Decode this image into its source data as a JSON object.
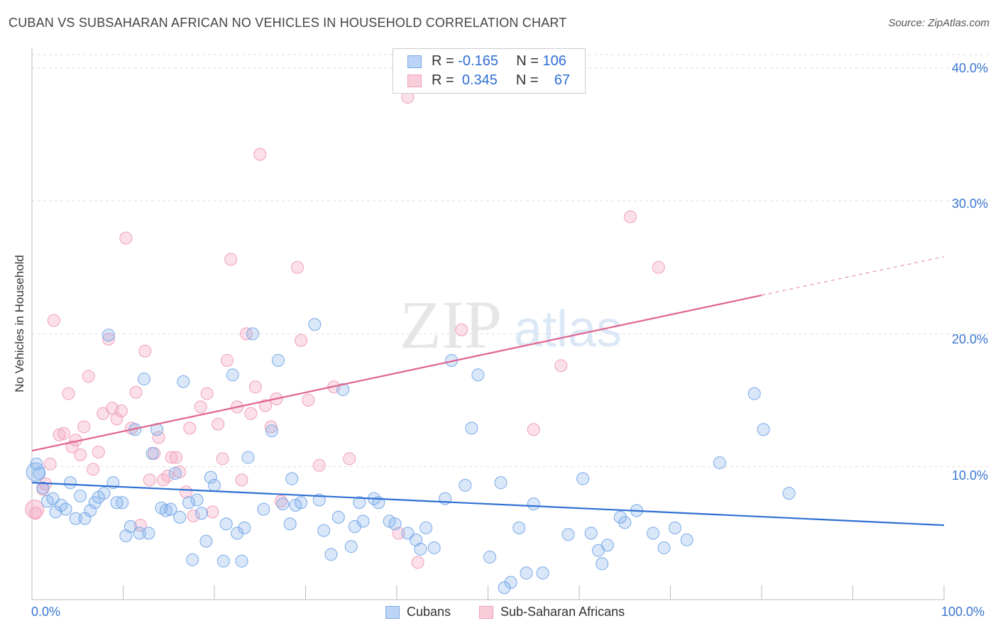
{
  "header": {
    "title": "CUBAN VS SUBSAHARAN AFRICAN NO VEHICLES IN HOUSEHOLD CORRELATION CHART",
    "source": "Source: ZipAtlas.com"
  },
  "legend": {
    "rows": [
      {
        "r_label": "R =",
        "r_value": "-0.165",
        "n_label": "N =",
        "n_value": "106"
      },
      {
        "r_label": "R =",
        "r_value": "0.345",
        "n_label": "N =",
        "n_value": "67"
      }
    ]
  },
  "bottom_legend": [
    "Cubans",
    "Sub-Saharan Africans"
  ],
  "watermark": {
    "zip": "ZIP",
    "atlas": "atlas"
  },
  "chart_data": {
    "type": "scatter",
    "title": "CUBAN VS SUBSAHARAN AFRICAN NO VEHICLES IN HOUSEHOLD CORRELATION CHART",
    "xlabel": "",
    "ylabel": "No Vehicles in Household",
    "xlim": [
      0,
      100
    ],
    "ylim": [
      0,
      41
    ],
    "x_tick_labels": [
      "0.0%",
      "100.0%"
    ],
    "y_ticks": [
      10,
      20,
      30,
      40
    ],
    "y_tick_labels": [
      "10.0%",
      "20.0%",
      "30.0%",
      "40.0%"
    ],
    "grid": true,
    "colors": {
      "Cubans": "#7aaae8",
      "Sub-Saharan Africans": "#f0a0b8",
      "blue_line": "#2e6fd3",
      "pink_line": "#e0638f"
    },
    "series": [
      {
        "name": "Cubans",
        "trend": {
          "x": [
            0,
            100
          ],
          "y": [
            8.8,
            5.6
          ]
        },
        "points": [
          [
            0.5,
            10.2
          ],
          [
            0.8,
            9.5
          ],
          [
            1.2,
            8.4
          ],
          [
            1.7,
            7.4
          ],
          [
            2.3,
            7.6
          ],
          [
            2.6,
            6.6
          ],
          [
            3.2,
            7.1
          ],
          [
            3.7,
            6.8
          ],
          [
            4.2,
            8.8
          ],
          [
            4.8,
            6.1
          ],
          [
            5.3,
            7.8
          ],
          [
            5.8,
            6.1
          ],
          [
            6.4,
            6.7
          ],
          [
            6.9,
            7.3
          ],
          [
            7.3,
            7.7
          ],
          [
            7.9,
            8.0
          ],
          [
            8.4,
            19.9
          ],
          [
            8.9,
            8.8
          ],
          [
            9.3,
            7.3
          ],
          [
            9.9,
            7.3
          ],
          [
            10.3,
            4.8
          ],
          [
            10.8,
            5.5
          ],
          [
            11.3,
            12.8
          ],
          [
            11.8,
            5.0
          ],
          [
            12.3,
            16.6
          ],
          [
            12.8,
            5.0
          ],
          [
            13.2,
            11.0
          ],
          [
            13.7,
            12.8
          ],
          [
            14.2,
            6.9
          ],
          [
            14.7,
            6.7
          ],
          [
            15.2,
            6.8
          ],
          [
            15.7,
            9.5
          ],
          [
            16.2,
            6.2
          ],
          [
            16.6,
            16.4
          ],
          [
            17.2,
            7.3
          ],
          [
            17.6,
            3.0
          ],
          [
            18.1,
            7.5
          ],
          [
            18.6,
            6.5
          ],
          [
            19.1,
            4.4
          ],
          [
            19.6,
            9.2
          ],
          [
            20.0,
            8.6
          ],
          [
            21.0,
            2.9
          ],
          [
            21.3,
            5.7
          ],
          [
            22.0,
            16.9
          ],
          [
            22.5,
            5.0
          ],
          [
            23.0,
            2.9
          ],
          [
            23.3,
            5.4
          ],
          [
            23.7,
            10.7
          ],
          [
            24.2,
            20.0
          ],
          [
            25.4,
            6.8
          ],
          [
            26.3,
            12.7
          ],
          [
            27.0,
            18.0
          ],
          [
            27.5,
            7.2
          ],
          [
            28.3,
            5.7
          ],
          [
            28.5,
            9.1
          ],
          [
            28.9,
            7.1
          ],
          [
            29.5,
            7.3
          ],
          [
            31.0,
            20.7
          ],
          [
            31.5,
            7.5
          ],
          [
            32.0,
            5.2
          ],
          [
            32.8,
            3.4
          ],
          [
            33.6,
            6.2
          ],
          [
            34.1,
            15.8
          ],
          [
            35.0,
            4.0
          ],
          [
            35.4,
            5.5
          ],
          [
            35.9,
            7.3
          ],
          [
            36.3,
            5.9
          ],
          [
            37.5,
            7.6
          ],
          [
            38.0,
            7.3
          ],
          [
            39.2,
            5.9
          ],
          [
            39.8,
            5.7
          ],
          [
            41.2,
            5.0
          ],
          [
            42.1,
            4.5
          ],
          [
            42.6,
            3.8
          ],
          [
            43.2,
            5.4
          ],
          [
            44.1,
            3.9
          ],
          [
            45.3,
            7.6
          ],
          [
            46.0,
            18.0
          ],
          [
            47.5,
            8.6
          ],
          [
            48.2,
            12.9
          ],
          [
            48.9,
            16.9
          ],
          [
            50.2,
            3.2
          ],
          [
            51.4,
            8.8
          ],
          [
            51.8,
            0.9
          ],
          [
            52.5,
            1.3
          ],
          [
            53.4,
            5.4
          ],
          [
            54.2,
            2.0
          ],
          [
            55.0,
            7.2
          ],
          [
            56.0,
            2.0
          ],
          [
            58.8,
            4.9
          ],
          [
            60.4,
            9.1
          ],
          [
            61.3,
            5.0
          ],
          [
            62.1,
            3.7
          ],
          [
            62.5,
            2.7
          ],
          [
            63.1,
            4.1
          ],
          [
            64.5,
            6.2
          ],
          [
            65.0,
            5.8
          ],
          [
            66.3,
            6.7
          ],
          [
            68.1,
            5.0
          ],
          [
            69.3,
            3.9
          ],
          [
            70.5,
            5.4
          ],
          [
            71.8,
            4.5
          ],
          [
            75.4,
            10.3
          ],
          [
            79.2,
            15.5
          ],
          [
            80.2,
            12.8
          ],
          [
            83.0,
            8.0
          ]
        ]
      },
      {
        "name": "Sub-Saharan Africans",
        "trend": {
          "x": [
            0,
            80
          ],
          "y": [
            11.2,
            22.9
          ]
        },
        "trend_dashed": {
          "x": [
            80,
            100
          ],
          "y": [
            22.9,
            25.8
          ]
        },
        "points": [
          [
            0.4,
            6.5
          ],
          [
            1.2,
            8.3
          ],
          [
            1.5,
            8.7
          ],
          [
            2.0,
            10.2
          ],
          [
            2.4,
            21.0
          ],
          [
            3.0,
            12.4
          ],
          [
            3.5,
            12.5
          ],
          [
            4.0,
            15.5
          ],
          [
            4.4,
            11.5
          ],
          [
            4.8,
            12.0
          ],
          [
            5.3,
            10.9
          ],
          [
            5.7,
            13.0
          ],
          [
            6.2,
            16.8
          ],
          [
            6.7,
            9.8
          ],
          [
            7.3,
            11.1
          ],
          [
            7.8,
            14.0
          ],
          [
            8.4,
            19.6
          ],
          [
            8.8,
            14.4
          ],
          [
            9.3,
            13.6
          ],
          [
            9.8,
            14.2
          ],
          [
            10.3,
            27.2
          ],
          [
            10.9,
            12.9
          ],
          [
            11.4,
            15.6
          ],
          [
            11.9,
            5.6
          ],
          [
            12.4,
            18.7
          ],
          [
            12.9,
            9.0
          ],
          [
            13.4,
            11.0
          ],
          [
            13.9,
            12.2
          ],
          [
            14.4,
            9.0
          ],
          [
            14.9,
            9.3
          ],
          [
            15.3,
            10.7
          ],
          [
            15.8,
            10.7
          ],
          [
            16.2,
            9.6
          ],
          [
            16.9,
            8.1
          ],
          [
            17.3,
            12.9
          ],
          [
            17.7,
            6.3
          ],
          [
            18.5,
            14.5
          ],
          [
            19.2,
            15.5
          ],
          [
            19.8,
            6.6
          ],
          [
            20.4,
            13.2
          ],
          [
            20.9,
            10.6
          ],
          [
            21.4,
            18.0
          ],
          [
            21.8,
            25.6
          ],
          [
            22.5,
            14.5
          ],
          [
            23.0,
            9.0
          ],
          [
            23.5,
            20.0
          ],
          [
            24.0,
            14.0
          ],
          [
            24.5,
            16.0
          ],
          [
            25.0,
            33.5
          ],
          [
            25.6,
            14.6
          ],
          [
            26.2,
            13.0
          ],
          [
            26.8,
            15.1
          ],
          [
            27.3,
            7.4
          ],
          [
            29.1,
            25.0
          ],
          [
            29.5,
            19.5
          ],
          [
            30.3,
            15.0
          ],
          [
            31.5,
            10.1
          ],
          [
            33.1,
            16.0
          ],
          [
            34.8,
            10.6
          ],
          [
            40.2,
            5.0
          ],
          [
            41.2,
            37.8
          ],
          [
            42.3,
            2.8
          ],
          [
            47.1,
            20.3
          ],
          [
            55.0,
            12.8
          ],
          [
            58.0,
            17.6
          ],
          [
            65.6,
            28.8
          ],
          [
            68.7,
            25.0
          ]
        ]
      }
    ]
  }
}
